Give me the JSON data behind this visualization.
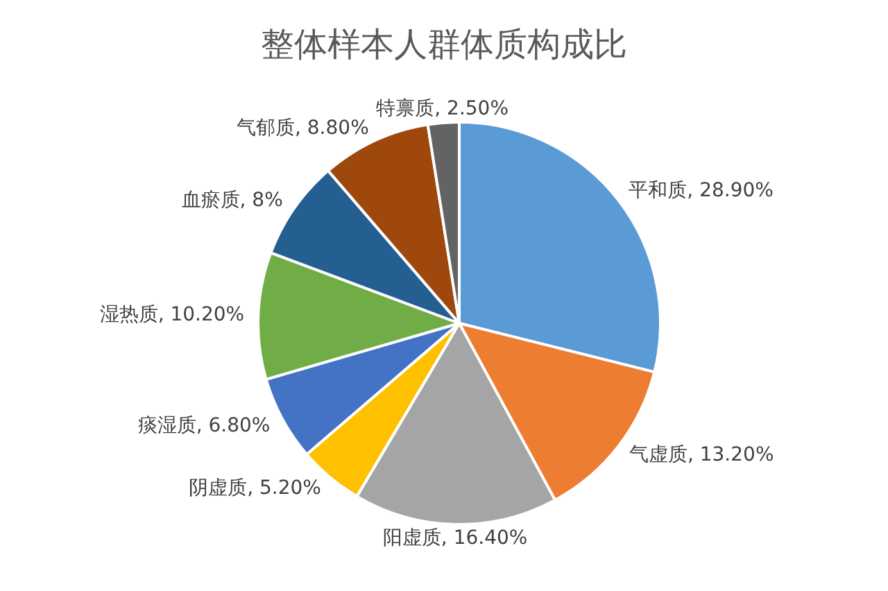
{
  "chart_data": {
    "type": "pie",
    "title": "整体样本人群体质构成比",
    "categories": [
      "平和质",
      "气虚质",
      "阳虚质",
      "阴虚质",
      "痰湿质",
      "湿热质",
      "血瘀质",
      "气郁质",
      "特禀质"
    ],
    "values": [
      28.9,
      13.2,
      16.4,
      5.2,
      6.8,
      10.2,
      8,
      8.8,
      2.5
    ],
    "value_labels": [
      "28.90%",
      "13.20%",
      "16.40%",
      "5.20%",
      "6.80%",
      "10.20%",
      "8%",
      "8.80%",
      "2.50%"
    ],
    "colors": [
      "#5b9bd5",
      "#ed7d31",
      "#a5a5a5",
      "#ffc000",
      "#4472c4",
      "#70ad47",
      "#255e91",
      "#9e480e",
      "#636363"
    ],
    "legend": false
  }
}
